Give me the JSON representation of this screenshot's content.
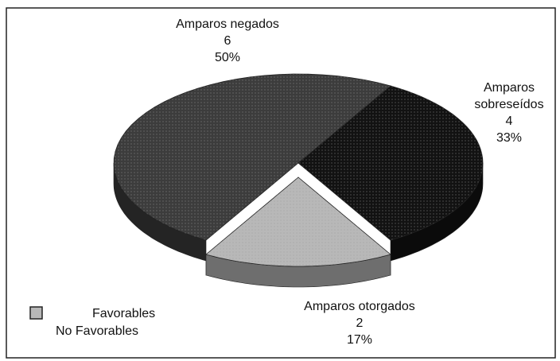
{
  "chart_data": {
    "type": "pie3d",
    "categories": [
      "Amparos negados",
      "Amparos sobreseídos",
      "Amparos otorgados"
    ],
    "values": [
      6,
      4,
      2
    ],
    "percent_labels": [
      "50%",
      "33%",
      "17%"
    ],
    "colors": [
      "#3c3c3c",
      "#121212",
      "#b8b8b8"
    ],
    "exploded": [
      false,
      false,
      true
    ],
    "legend": [
      {
        "label": "Favorables",
        "color": "#b8b8b8"
      },
      {
        "label": "No Favorables"
      }
    ]
  }
}
